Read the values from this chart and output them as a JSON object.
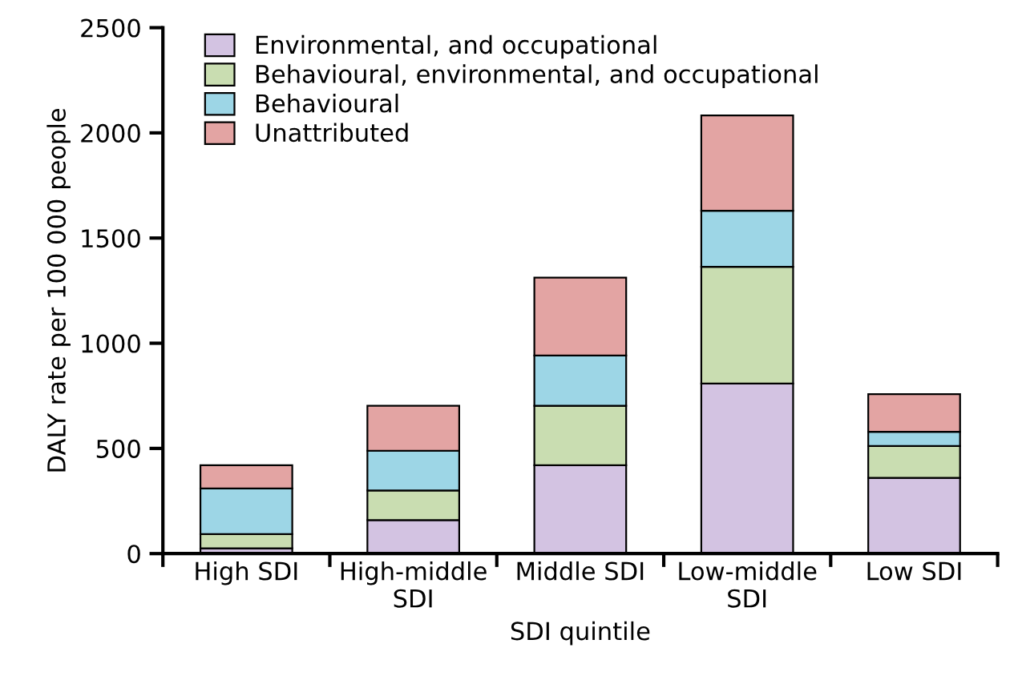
{
  "chart_data": {
    "type": "bar",
    "stacked": true,
    "xlabel": "SDI quintile",
    "ylabel": "DALY rate per 100 000 people",
    "categories": [
      "High SDI",
      "High-middle\nSDI",
      "Middle SDI",
      "Low-middle\nSDI",
      "Low SDI"
    ],
    "series": [
      {
        "name": "Environmental, and occupational",
        "color": "#d3c3e2",
        "values": [
          25,
          159,
          420,
          808,
          360
        ]
      },
      {
        "name": "Behavioural, environmental, and occupational",
        "color": "#c9ddb1",
        "values": [
          68,
          141,
          283,
          555,
          151
        ]
      },
      {
        "name": "Behavioural",
        "color": "#9dd6e6",
        "values": [
          217,
          189,
          239,
          267,
          68
        ]
      },
      {
        "name": "Unattributed",
        "color": "#e3a4a3",
        "values": [
          110,
          214,
          370,
          453,
          179
        ]
      }
    ],
    "ylim": [
      0,
      2500
    ],
    "yticks": [
      0,
      500,
      1000,
      1500,
      2000,
      2500
    ],
    "grid": false,
    "legend": "top left"
  }
}
